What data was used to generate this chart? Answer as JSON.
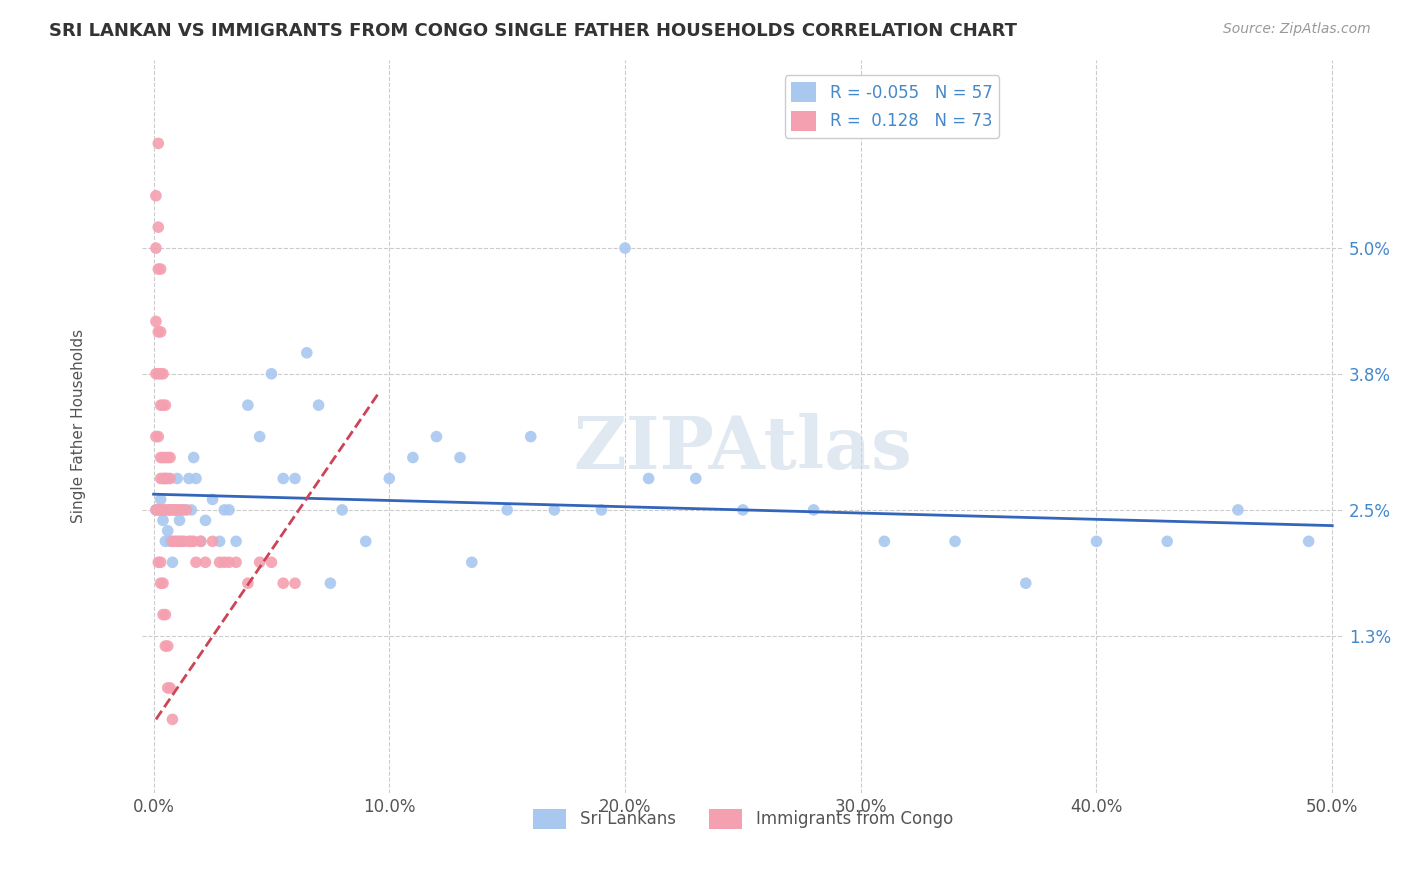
{
  "title": "SRI LANKAN VS IMMIGRANTS FROM CONGO SINGLE FATHER HOUSEHOLDS CORRELATION CHART",
  "source": "Source: ZipAtlas.com",
  "ylabel": "Single Father Households",
  "xlim": [
    -0.005,
    0.505
  ],
  "ylim": [
    -0.002,
    0.068
  ],
  "xticks": [
    0.0,
    0.1,
    0.2,
    0.3,
    0.4,
    0.5
  ],
  "xtick_labels": [
    "0.0%",
    "10.0%",
    "20.0%",
    "30.0%",
    "40.0%",
    "50.0%"
  ],
  "yticks": [
    0.013,
    0.025,
    0.038,
    0.05
  ],
  "ytick_labels": [
    "1.3%",
    "2.5%",
    "3.8%",
    "5.0%"
  ],
  "watermark": "ZIPAtlas",
  "sri_lanka_color": "#a8c8f0",
  "congo_color": "#f4a0b0",
  "sri_lanka_R": -0.055,
  "sri_lanka_N": 57,
  "congo_R": 0.128,
  "congo_N": 73,
  "trend_blue_color": "#3366bb",
  "trend_pink_color": "#cc4455",
  "legend_label_1": "Sri Lankans",
  "legend_label_2": "Immigrants from Congo",
  "sri_lanka_x": [
    0.001,
    0.002,
    0.003,
    0.004,
    0.005,
    0.005,
    0.006,
    0.007,
    0.007,
    0.008,
    0.009,
    0.01,
    0.011,
    0.012,
    0.013,
    0.015,
    0.016,
    0.017,
    0.018,
    0.02,
    0.022,
    0.025,
    0.028,
    0.03,
    0.032,
    0.035,
    0.04,
    0.045,
    0.05,
    0.055,
    0.06,
    0.065,
    0.07,
    0.08,
    0.09,
    0.1,
    0.11,
    0.12,
    0.13,
    0.15,
    0.17,
    0.19,
    0.21,
    0.23,
    0.25,
    0.28,
    0.31,
    0.34,
    0.37,
    0.4,
    0.43,
    0.46,
    0.49,
    0.2,
    0.16,
    0.135,
    0.075
  ],
  "sri_lanka_y": [
    0.025,
    0.025,
    0.026,
    0.024,
    0.022,
    0.028,
    0.023,
    0.022,
    0.025,
    0.02,
    0.025,
    0.028,
    0.024,
    0.022,
    0.025,
    0.028,
    0.025,
    0.03,
    0.028,
    0.022,
    0.024,
    0.026,
    0.022,
    0.025,
    0.025,
    0.022,
    0.035,
    0.032,
    0.038,
    0.028,
    0.028,
    0.04,
    0.035,
    0.025,
    0.022,
    0.028,
    0.03,
    0.032,
    0.03,
    0.025,
    0.025,
    0.025,
    0.028,
    0.028,
    0.025,
    0.025,
    0.022,
    0.022,
    0.018,
    0.022,
    0.022,
    0.025,
    0.022,
    0.05,
    0.032,
    0.02,
    0.018
  ],
  "congo_x": [
    0.001,
    0.001,
    0.001,
    0.001,
    0.001,
    0.002,
    0.002,
    0.002,
    0.002,
    0.002,
    0.002,
    0.003,
    0.003,
    0.003,
    0.003,
    0.003,
    0.003,
    0.003,
    0.004,
    0.004,
    0.004,
    0.004,
    0.004,
    0.005,
    0.005,
    0.005,
    0.005,
    0.006,
    0.006,
    0.006,
    0.007,
    0.007,
    0.007,
    0.008,
    0.008,
    0.009,
    0.009,
    0.01,
    0.01,
    0.011,
    0.011,
    0.012,
    0.013,
    0.014,
    0.015,
    0.016,
    0.017,
    0.018,
    0.02,
    0.022,
    0.025,
    0.028,
    0.03,
    0.032,
    0.035,
    0.04,
    0.045,
    0.05,
    0.055,
    0.06,
    0.001,
    0.002,
    0.002,
    0.003,
    0.003,
    0.004,
    0.004,
    0.005,
    0.005,
    0.006,
    0.006,
    0.007,
    0.008
  ],
  "congo_y": [
    0.055,
    0.05,
    0.043,
    0.038,
    0.032,
    0.06,
    0.052,
    0.048,
    0.042,
    0.038,
    0.032,
    0.048,
    0.042,
    0.038,
    0.035,
    0.03,
    0.028,
    0.025,
    0.038,
    0.035,
    0.03,
    0.028,
    0.025,
    0.035,
    0.03,
    0.028,
    0.025,
    0.03,
    0.028,
    0.025,
    0.03,
    0.028,
    0.025,
    0.025,
    0.022,
    0.025,
    0.022,
    0.025,
    0.022,
    0.025,
    0.022,
    0.025,
    0.022,
    0.025,
    0.022,
    0.022,
    0.022,
    0.02,
    0.022,
    0.02,
    0.022,
    0.02,
    0.02,
    0.02,
    0.02,
    0.018,
    0.02,
    0.02,
    0.018,
    0.018,
    0.025,
    0.025,
    0.02,
    0.02,
    0.018,
    0.018,
    0.015,
    0.015,
    0.012,
    0.012,
    0.008,
    0.008,
    0.005
  ],
  "sri_trend_x0": 0.0,
  "sri_trend_x1": 0.5,
  "sri_trend_y0": 0.0265,
  "sri_trend_y1": 0.0235,
  "congo_trend_x0": 0.001,
  "congo_trend_x1": 0.095,
  "congo_trend_y0": 0.005,
  "congo_trend_y1": 0.036
}
